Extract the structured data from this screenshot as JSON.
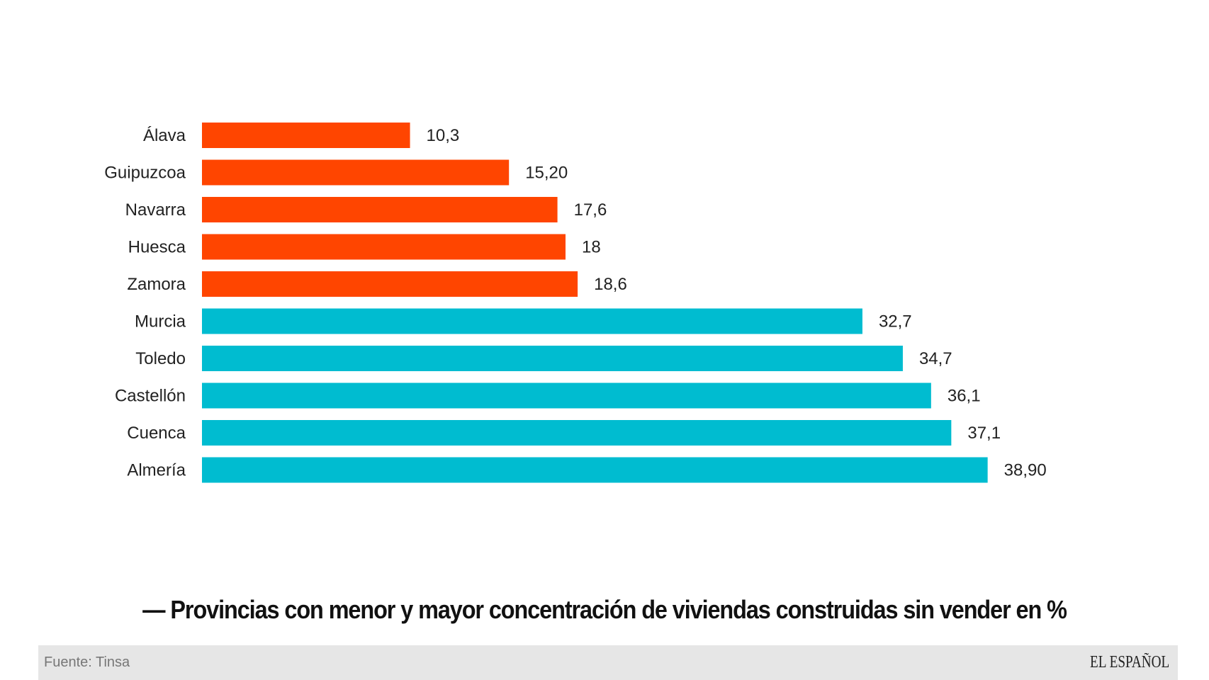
{
  "chart_data": {
    "type": "bar",
    "orientation": "horizontal",
    "title": "— Provincias con menor y mayor concentración de viviendas construidas sin vender en %",
    "categories": [
      "Álava",
      "Guipuzcoa",
      "Navarra",
      "Huesca",
      "Zamora",
      "Murcia",
      "Toledo",
      "Castellón",
      "Cuenca",
      "Almería"
    ],
    "values": [
      10.3,
      15.2,
      17.6,
      18,
      18.6,
      32.7,
      34.7,
      36.1,
      37.1,
      38.9
    ],
    "value_labels": [
      "10,3",
      "15,20",
      "17,6",
      "18",
      "18,6",
      "32,7",
      "34,7",
      "36,1",
      "37,1",
      "38,90"
    ],
    "groups": [
      "menor",
      "menor",
      "menor",
      "menor",
      "menor",
      "mayor",
      "mayor",
      "mayor",
      "mayor",
      "mayor"
    ],
    "colors": {
      "menor": "#FF4500",
      "mayor": "#00BCD0"
    },
    "xlim": [
      0,
      39
    ],
    "grid": false,
    "axes_visible": false
  },
  "footer": {
    "source": "Fuente: Tinsa",
    "logo": "EL ESPAÑOL"
  }
}
